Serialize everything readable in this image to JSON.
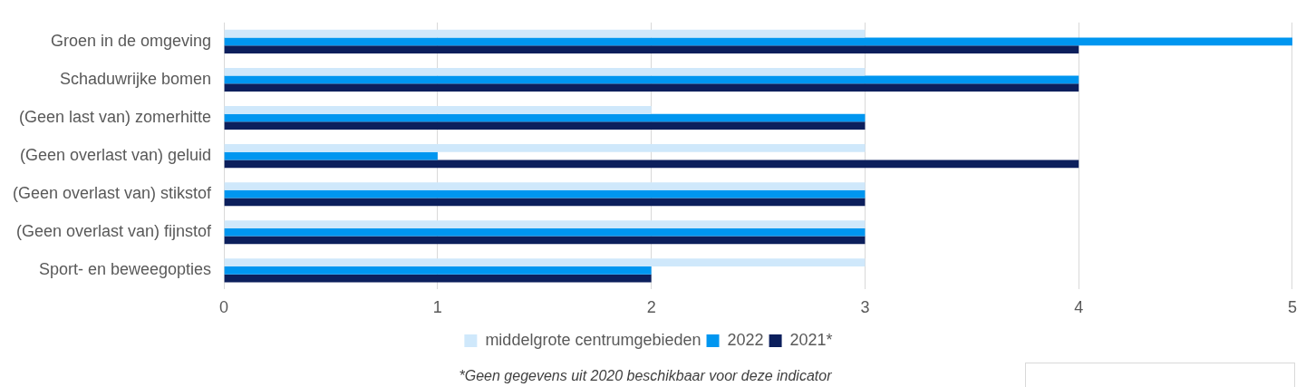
{
  "chart_data": {
    "type": "bar",
    "orientation": "horizontal",
    "categories": [
      "Groen in de omgeving",
      "Schaduwrijke bomen",
      "(Geen last van) zomerhitte",
      "(Geen overlast van) geluid",
      "(Geen overlast van) stikstof",
      "(Geen overlast van) fijnstof",
      "Sport- en beweegopties"
    ],
    "series": [
      {
        "name": "middelgrote centrumgebieden",
        "color": "#cfe8fb",
        "values": [
          3,
          3,
          2,
          3,
          3,
          3,
          3
        ]
      },
      {
        "name": "2022",
        "color": "#0096f0",
        "values": [
          5,
          4,
          3,
          1,
          3,
          3,
          2
        ]
      },
      {
        "name": "2021*",
        "color": "#0c1f5c",
        "values": [
          4,
          4,
          3,
          4,
          3,
          3,
          2
        ]
      }
    ],
    "xlim": [
      0,
      5
    ],
    "xticks": [
      0,
      1,
      2,
      3,
      4,
      5
    ],
    "grid": "x",
    "legend": "bottom",
    "annotations": [
      "*Geen gegevens uit 2020 beschikbaar voor deze indicator"
    ]
  }
}
